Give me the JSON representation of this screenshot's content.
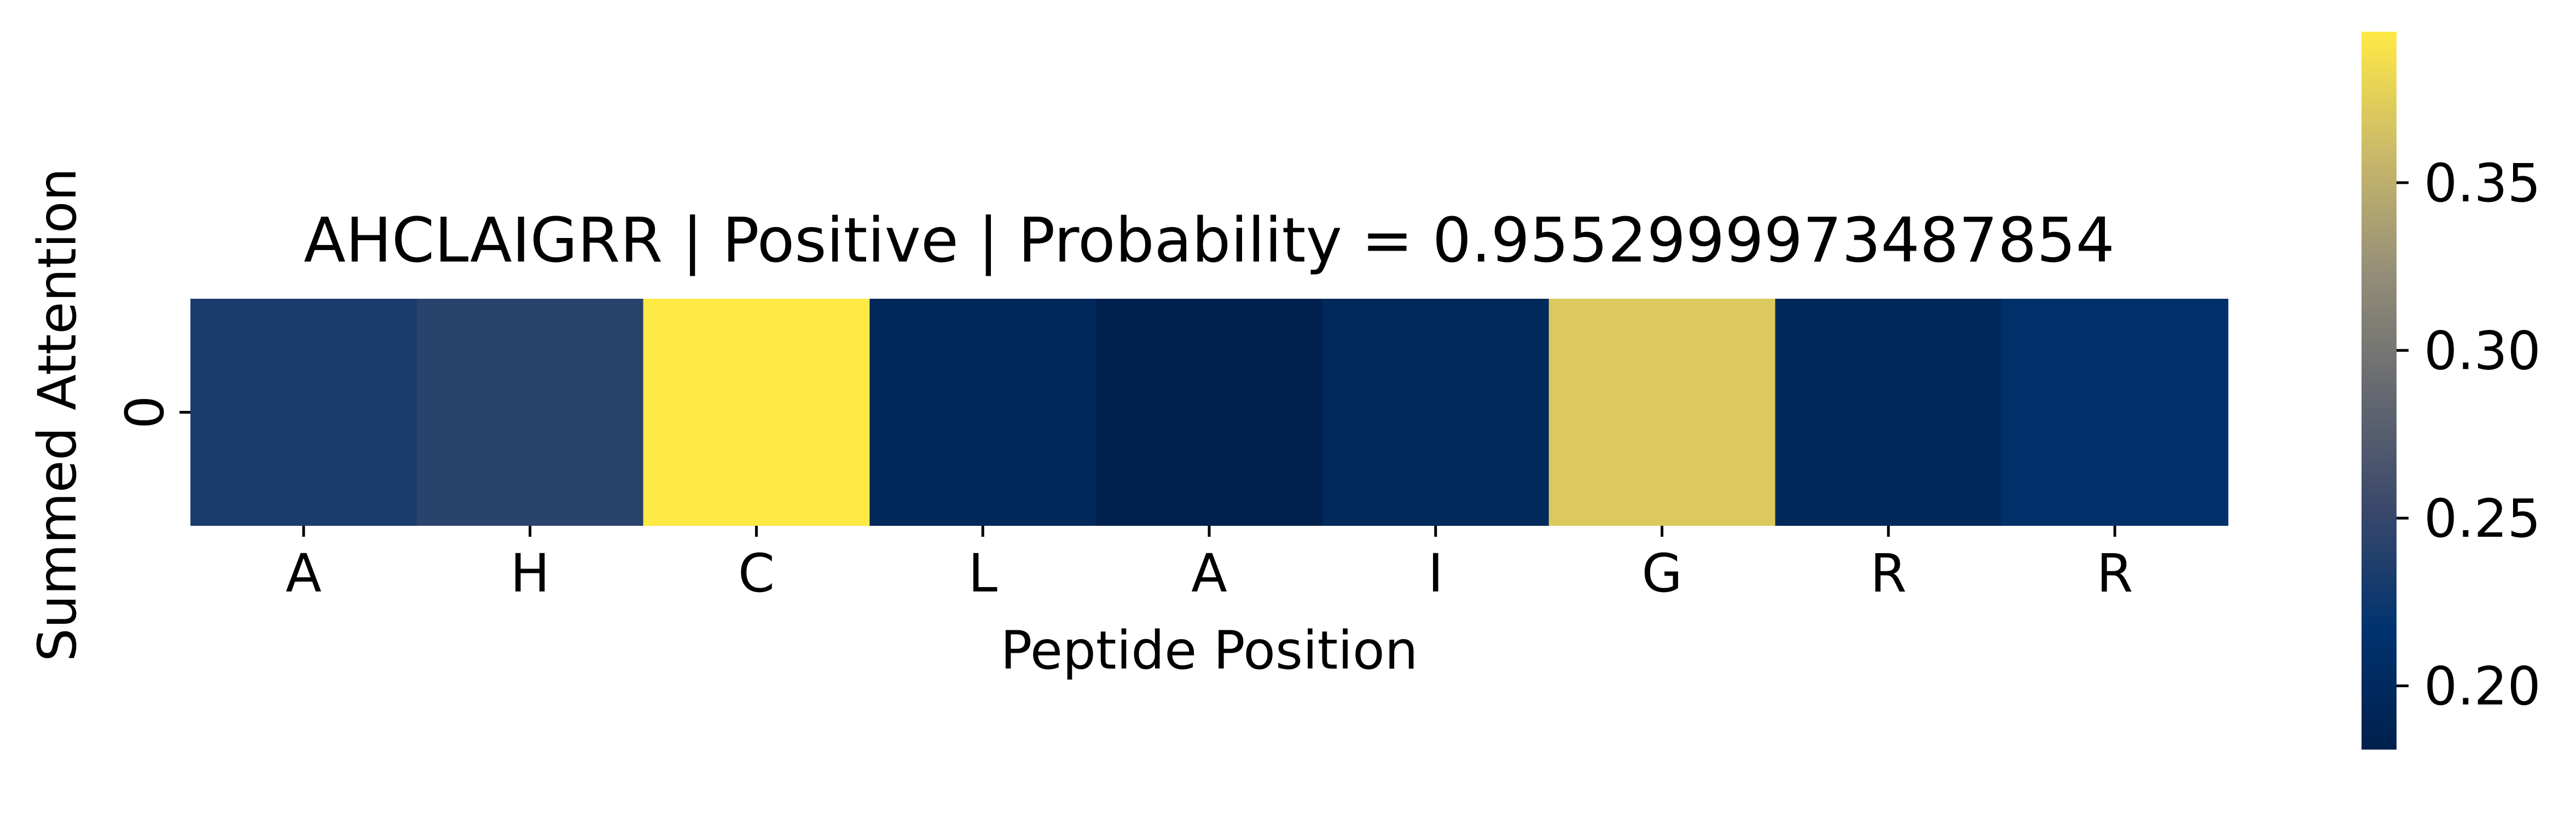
{
  "chart_data": {
    "type": "heatmap",
    "title": "AHCLAIGRR | Positive | Probability = 0.9552999973487854",
    "xlabel": "Peptide Position",
    "ylabel": "Summed Attention",
    "x_categories": [
      "A",
      "H",
      "C",
      "L",
      "A",
      "I",
      "G",
      "R",
      "R"
    ],
    "y_categories": [
      "0"
    ],
    "values": [
      [
        0.232,
        0.243,
        0.395,
        0.196,
        0.181,
        0.197,
        0.371,
        0.196,
        0.211
      ]
    ],
    "colormap": "cividis",
    "colorbar": {
      "vmin": 0.181,
      "vmax": 0.395,
      "ticks": [
        0.2,
        0.25,
        0.3,
        0.35
      ],
      "tick_labels": [
        "0.20",
        "0.25",
        "0.30",
        "0.35"
      ],
      "stops": [
        "#00204d",
        "#00336f",
        "#39486b",
        "#666970",
        "#958f78",
        "#cbba69",
        "#ffe945"
      ]
    },
    "grid": false,
    "legend": "colorbar-right"
  }
}
